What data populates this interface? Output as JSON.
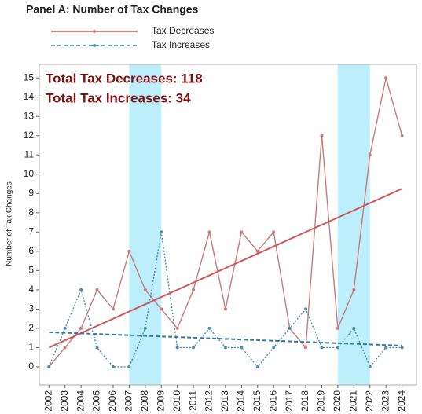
{
  "chart_data": {
    "type": "line",
    "title": "Panel A: Number of Tax Changes",
    "y_label": "Number of Tax Changes",
    "annotations": [
      "Total Tax Decreases: 118",
      "Total Tax Increases: 34"
    ],
    "x": [
      2002,
      2003,
      2004,
      2005,
      2006,
      2007,
      2008,
      2009,
      2010,
      2011,
      2012,
      2013,
      2014,
      2015,
      2016,
      2017,
      2018,
      2019,
      2020,
      2021,
      2022,
      2023,
      2024
    ],
    "xlim": [
      2001.4,
      2024.9
    ],
    "xticks": [
      2002,
      2003,
      2004,
      2005,
      2006,
      2007,
      2008,
      2009,
      2010,
      2011,
      2012,
      2013,
      2014,
      2015,
      2016,
      2017,
      2018,
      2019,
      2020,
      2021,
      2022,
      2023,
      2024
    ],
    "ylim": [
      -0.94,
      15.7
    ],
    "yticks": [
      0,
      1,
      2,
      3,
      4,
      5,
      6,
      7,
      8,
      9,
      10,
      11,
      12,
      13,
      14,
      15
    ],
    "shaded_ranges": [
      [
        2007,
        2009
      ],
      [
        2020,
        2022
      ]
    ],
    "shade_color": "#bdeefc",
    "series": [
      {
        "name": "Tax Decreases",
        "color": "#c97b7b",
        "trend_color": "#d05858",
        "dash": "solid",
        "values": [
          0,
          1,
          2,
          4,
          3,
          6,
          4,
          3,
          2,
          4,
          7,
          3,
          7,
          6,
          7,
          2,
          1,
          12,
          2,
          4,
          11,
          15,
          12
        ],
        "trend": [
          1,
          9.25
        ]
      },
      {
        "name": "Tax Increases",
        "color": "#4a8fae",
        "trend_color": "#2f78aa",
        "dash": "dotted",
        "values": [
          0,
          2,
          4,
          1,
          0,
          0,
          2,
          7,
          1,
          1,
          2,
          1,
          1,
          0,
          1,
          2,
          3,
          1,
          1,
          2,
          0,
          1,
          1
        ],
        "trend": [
          1.8,
          1.1
        ]
      }
    ]
  }
}
